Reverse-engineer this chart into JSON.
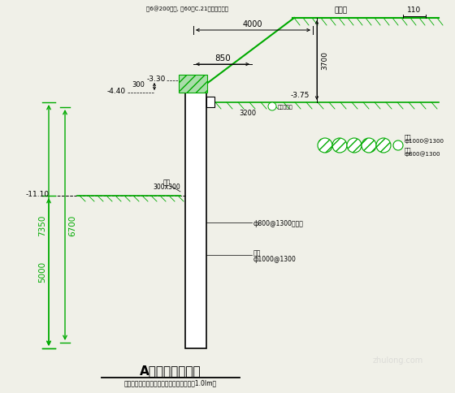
{
  "bg_color": "#f0f0e8",
  "line_color": "#00aa00",
  "dim_color": "#000000",
  "title": "A区基坑支护剖面",
  "note": "注：止水桩桩端穿过砂卵石层置入铜柱土层1.0Im。",
  "top_label": "钢6@200钢筋, 钢60砼C.21面层标号详图",
  "road_label": "毛安路",
  "dim_110": "110",
  "dim_4000": "4000",
  "dim_850": "850",
  "dim_330": "-3.30",
  "dim_440": "-4.40",
  "dim_375": "-3.75",
  "dim_300": "300",
  "dim_3200": "3200",
  "dim_3700": "3700",
  "dim_7350": "7350",
  "dim_6700": "6700",
  "dim_11_10": "-11.10",
  "dim_5000": "5000",
  "pile_label2": "ф800@1300钻孔桩",
  "pile_label3a": "桩桩",
  "pile_label3b": "ф1000@1300",
  "anchor_label1a": "锚桩",
  "anchor_label1b": "ф1000@1300",
  "anchor_label2a": "桩桩",
  "anchor_label2b": "ф800@1300",
  "护桩": "护桩",
  "300x300": "300x300",
  "消水": "消水规则桩"
}
